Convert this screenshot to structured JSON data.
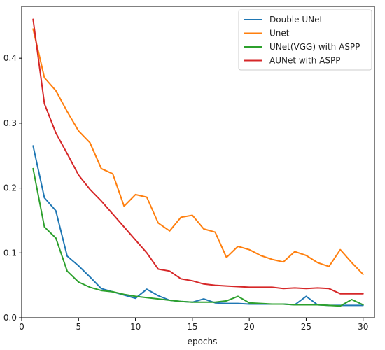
{
  "chart_data": {
    "type": "line",
    "title": "",
    "xlabel": "epochs",
    "ylabel": "",
    "xlim": [
      0,
      31
    ],
    "ylim": [
      0,
      0.48
    ],
    "xticks": [
      0,
      5,
      10,
      15,
      20,
      25,
      30
    ],
    "yticks": [
      0.0,
      0.1,
      0.2,
      0.3,
      0.4
    ],
    "grid": false,
    "legend_position": "top-right",
    "x": [
      1,
      2,
      3,
      4,
      5,
      6,
      7,
      8,
      9,
      10,
      11,
      12,
      13,
      14,
      15,
      16,
      17,
      18,
      19,
      20,
      21,
      22,
      23,
      24,
      25,
      26,
      27,
      28,
      29,
      30
    ],
    "series": [
      {
        "name": "Double UNet",
        "color": "#1f77b4",
        "values": [
          0.265,
          0.185,
          0.165,
          0.095,
          0.08,
          0.063,
          0.045,
          0.04,
          0.035,
          0.03,
          0.044,
          0.034,
          0.027,
          0.025,
          0.024,
          0.029,
          0.023,
          0.022,
          0.022,
          0.021,
          0.021,
          0.021,
          0.021,
          0.02,
          0.033,
          0.02,
          0.019,
          0.019,
          0.019,
          0.019
        ]
      },
      {
        "name": "Unet",
        "color": "#ff7f0e",
        "values": [
          0.445,
          0.37,
          0.35,
          0.318,
          0.288,
          0.27,
          0.23,
          0.222,
          0.172,
          0.19,
          0.186,
          0.146,
          0.134,
          0.155,
          0.158,
          0.137,
          0.132,
          0.093,
          0.11,
          0.105,
          0.096,
          0.09,
          0.086,
          0.102,
          0.096,
          0.085,
          0.079,
          0.105,
          0.085,
          0.067
        ]
      },
      {
        "name": "UNet(VGG) with ASPP",
        "color": "#2ca02c",
        "values": [
          0.23,
          0.14,
          0.123,
          0.072,
          0.055,
          0.047,
          0.042,
          0.04,
          0.036,
          0.033,
          0.031,
          0.029,
          0.027,
          0.025,
          0.024,
          0.024,
          0.024,
          0.026,
          0.033,
          0.023,
          0.022,
          0.021,
          0.021,
          0.02,
          0.02,
          0.02,
          0.019,
          0.018,
          0.028,
          0.02
        ]
      },
      {
        "name": "AUNet with ASPP",
        "color": "#d62728",
        "values": [
          0.46,
          0.33,
          0.285,
          0.253,
          0.22,
          0.198,
          0.18,
          0.16,
          0.14,
          0.12,
          0.1,
          0.075,
          0.072,
          0.06,
          0.057,
          0.052,
          0.05,
          0.049,
          0.048,
          0.047,
          0.047,
          0.047,
          0.045,
          0.046,
          0.045,
          0.046,
          0.045,
          0.037,
          0.037,
          0.037
        ]
      }
    ]
  }
}
